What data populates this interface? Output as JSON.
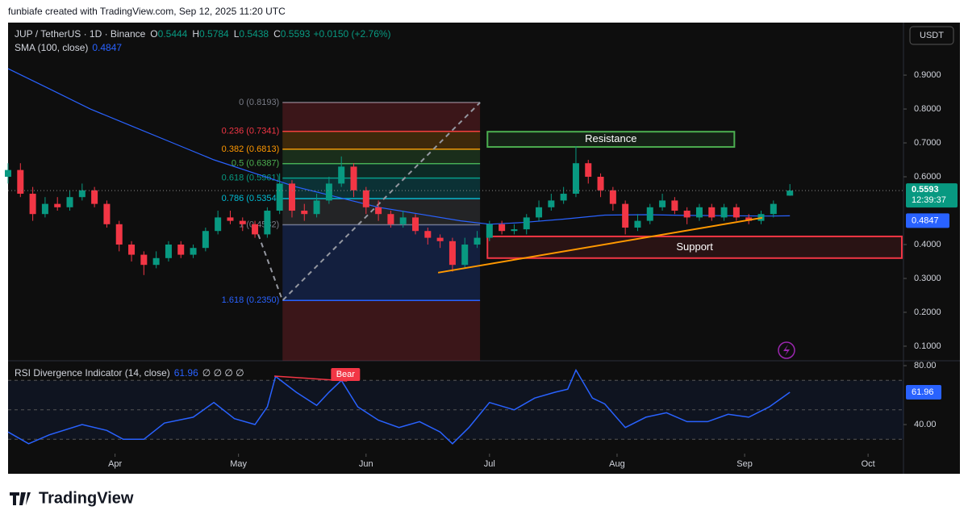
{
  "header": "funbiafe created with TradingView.com, Sep 12, 2025 11:20 UTC",
  "brand": "TradingView",
  "chart_data": {
    "type": "candlestick",
    "symbol": "JUP / TetherUS · 1D · Binance",
    "legend_ohlc": [
      {
        "label": "O",
        "value": 0.5444
      },
      {
        "label": "H",
        "value": 0.5784
      },
      {
        "label": "L",
        "value": 0.5438
      },
      {
        "label": "C",
        "value": 0.5593
      }
    ],
    "change_label": "+0.0150 (+2.76%)",
    "currency": "USDT",
    "countdown": "12:39:37",
    "up_color": "#089981",
    "down_color": "#f23645",
    "xlim": [
      0,
      217.6
    ],
    "xticks": [
      {
        "value": 26,
        "label": "Apr"
      },
      {
        "value": 56,
        "label": "May"
      },
      {
        "value": 87,
        "label": "Jun"
      },
      {
        "value": 117,
        "label": "Jul"
      },
      {
        "value": 148,
        "label": "Aug"
      },
      {
        "value": 179,
        "label": "Sep"
      },
      {
        "value": 209,
        "label": "Oct"
      }
    ],
    "ylim": [
      0.057,
      1.055
    ],
    "yticks": [
      {
        "value": 0.9,
        "label": "0.9000"
      },
      {
        "value": 0.8,
        "label": "0.8000"
      },
      {
        "value": 0.7,
        "label": "0.7000"
      },
      {
        "value": 0.6,
        "label": "0.6000"
      },
      {
        "value": 0.4,
        "label": "0.4000"
      },
      {
        "value": 0.3,
        "label": "0.3000"
      },
      {
        "value": 0.2,
        "label": "0.2000"
      },
      {
        "value": 0.1,
        "label": "0.1000"
      }
    ],
    "candles": {
      "x": [
        0,
        3,
        6,
        9,
        12,
        15,
        18,
        21,
        24,
        27,
        30,
        33,
        36,
        39,
        42,
        45,
        48,
        51,
        54,
        57,
        60,
        63,
        66,
        69,
        72,
        75,
        78,
        81,
        84,
        87,
        90,
        93,
        96,
        99,
        102,
        105,
        108,
        111,
        114,
        117,
        120,
        123,
        126,
        129,
        132,
        135,
        138,
        141,
        144,
        147,
        150,
        153,
        156,
        159,
        162,
        165,
        168,
        171,
        174,
        177,
        180,
        183,
        186,
        190
      ],
      "open": [
        0.6,
        0.62,
        0.55,
        0.49,
        0.52,
        0.51,
        0.54,
        0.56,
        0.52,
        0.46,
        0.4,
        0.37,
        0.34,
        0.36,
        0.4,
        0.37,
        0.39,
        0.44,
        0.48,
        0.47,
        0.46,
        0.43,
        0.5,
        0.58,
        0.5,
        0.49,
        0.53,
        0.58,
        0.63,
        0.56,
        0.51,
        0.49,
        0.46,
        0.48,
        0.44,
        0.42,
        0.41,
        0.34,
        0.4,
        0.42,
        0.46,
        0.44,
        0.445,
        0.48,
        0.51,
        0.53,
        0.55,
        0.64,
        0.6,
        0.56,
        0.52,
        0.45,
        0.47,
        0.51,
        0.53,
        0.5,
        0.48,
        0.51,
        0.48,
        0.51,
        0.48,
        0.47,
        0.49,
        0.5444
      ],
      "high": [
        0.64,
        0.64,
        0.57,
        0.54,
        0.54,
        0.56,
        0.58,
        0.57,
        0.53,
        0.47,
        0.41,
        0.38,
        0.38,
        0.41,
        0.41,
        0.4,
        0.45,
        0.5,
        0.5,
        0.48,
        0.47,
        0.51,
        0.61,
        0.59,
        0.52,
        0.55,
        0.6,
        0.66,
        0.64,
        0.57,
        0.53,
        0.5,
        0.5,
        0.49,
        0.45,
        0.43,
        0.42,
        0.42,
        0.44,
        0.47,
        0.47,
        0.46,
        0.49,
        0.53,
        0.55,
        0.57,
        0.69,
        0.65,
        0.61,
        0.57,
        0.53,
        0.49,
        0.52,
        0.55,
        0.54,
        0.51,
        0.52,
        0.52,
        0.52,
        0.52,
        0.49,
        0.5,
        0.53,
        0.5784
      ],
      "low": [
        0.58,
        0.54,
        0.47,
        0.48,
        0.5,
        0.5,
        0.53,
        0.51,
        0.45,
        0.38,
        0.35,
        0.31,
        0.33,
        0.35,
        0.36,
        0.36,
        0.38,
        0.43,
        0.46,
        0.44,
        0.42,
        0.42,
        0.49,
        0.48,
        0.47,
        0.48,
        0.52,
        0.57,
        0.54,
        0.49,
        0.47,
        0.45,
        0.45,
        0.43,
        0.4,
        0.39,
        0.32,
        0.33,
        0.39,
        0.41,
        0.43,
        0.43,
        0.43,
        0.47,
        0.5,
        0.52,
        0.54,
        0.58,
        0.54,
        0.5,
        0.43,
        0.44,
        0.46,
        0.5,
        0.49,
        0.46,
        0.47,
        0.47,
        0.47,
        0.47,
        0.46,
        0.46,
        0.48,
        0.5438
      ],
      "close": [
        0.62,
        0.55,
        0.49,
        0.52,
        0.51,
        0.54,
        0.56,
        0.52,
        0.46,
        0.4,
        0.37,
        0.34,
        0.36,
        0.4,
        0.37,
        0.39,
        0.44,
        0.48,
        0.47,
        0.46,
        0.43,
        0.5,
        0.58,
        0.5,
        0.49,
        0.53,
        0.58,
        0.63,
        0.56,
        0.51,
        0.49,
        0.46,
        0.48,
        0.44,
        0.42,
        0.41,
        0.34,
        0.4,
        0.42,
        0.46,
        0.44,
        0.445,
        0.48,
        0.51,
        0.53,
        0.55,
        0.64,
        0.6,
        0.56,
        0.52,
        0.45,
        0.47,
        0.51,
        0.53,
        0.5,
        0.48,
        0.51,
        0.48,
        0.51,
        0.48,
        0.47,
        0.49,
        0.52,
        0.5593
      ]
    },
    "last_price": 0.5593,
    "sma": {
      "name": "SMA (100, close)",
      "last": 0.4847,
      "color": "#2962ff",
      "x": [
        0,
        10,
        20,
        30,
        40,
        50,
        60,
        70,
        80,
        90,
        100,
        110,
        117,
        125,
        135,
        145,
        155,
        165,
        175,
        185,
        190
      ],
      "values": [
        0.919,
        0.86,
        0.8,
        0.75,
        0.7,
        0.65,
        0.61,
        0.57,
        0.54,
        0.51,
        0.49,
        0.47,
        0.46,
        0.465,
        0.475,
        0.487,
        0.488,
        0.486,
        0.485,
        0.484,
        0.4847
      ]
    },
    "fib": {
      "x": [
        66.7,
        114.7
      ],
      "levels": [
        {
          "label": "0 (0.8193)",
          "value": 0.8193,
          "color": "#787b86"
        },
        {
          "label": "0.236 (0.7341)",
          "value": 0.7341,
          "color": "#f23645"
        },
        {
          "label": "0.382 (0.6813)",
          "value": 0.6813,
          "color": "#ff9800"
        },
        {
          "label": "0.5 (0.6387)",
          "value": 0.6387,
          "color": "#4caf50"
        },
        {
          "label": "0.618 (0.5961)",
          "value": 0.5961,
          "color": "#089981"
        },
        {
          "label": "0.786 (0.5354)",
          "value": 0.5354,
          "color": "#00bcd4"
        },
        {
          "label": "1 (0.4582)",
          "value": 0.4582,
          "color": "#787b86"
        },
        {
          "label": "1.618 (0.2350)",
          "value": 0.235,
          "color": "#2962ff"
        }
      ],
      "trend": {
        "x": [
          60.8,
          66.7,
          114.7
        ],
        "y": [
          0.43,
          0.235,
          0.8193
        ]
      }
    },
    "zones": [
      {
        "label": "Resistance",
        "x": [
          116.5,
          176.5
        ],
        "top": 0.733,
        "bottom": 0.688,
        "color": "#4caf50"
      },
      {
        "label": "Support",
        "x": [
          116.5,
          217.2
        ],
        "top": 0.424,
        "bottom": 0.36,
        "color": "#f23645"
      }
    ],
    "trendline": {
      "x": [
        104.5,
        183.3
      ],
      "y": [
        0.317,
        0.479
      ],
      "color": "#ff9800"
    },
    "rsi": {
      "name": "RSI Divergence Indicator (14, close)",
      "last": 61.96,
      "extra": "∅ ∅ ∅ ∅",
      "color": "#2962ff",
      "ylim": [
        21.4,
        83.3
      ],
      "yticks": [
        {
          "value": 80,
          "label": "80.00"
        },
        {
          "value": 40,
          "label": "40.00"
        }
      ],
      "bands": [
        70,
        50,
        30
      ],
      "x": [
        0,
        5,
        10,
        18,
        24,
        28,
        33,
        38,
        45,
        50,
        55,
        60,
        63,
        65,
        70,
        75,
        78,
        81,
        85,
        90,
        95,
        100,
        105,
        108,
        112,
        117,
        123,
        128,
        133,
        136,
        138,
        142,
        145,
        150,
        155,
        160,
        165,
        170,
        175,
        180,
        185,
        190
      ],
      "values": [
        35,
        27,
        33,
        40,
        36,
        30,
        30,
        41,
        45,
        55,
        44,
        40,
        52,
        72.7,
        62,
        53,
        62,
        70,
        52,
        43,
        38,
        42,
        35,
        27,
        38,
        55,
        50,
        58,
        62,
        64,
        77,
        58,
        54,
        38,
        45,
        48,
        42,
        42,
        47,
        45,
        52,
        61.96
      ],
      "divergence": {
        "label": "Bear",
        "x": [
          64.7,
          82.4
        ],
        "y": [
          72.9,
          69.6
        ],
        "color": "#f23645"
      }
    }
  }
}
